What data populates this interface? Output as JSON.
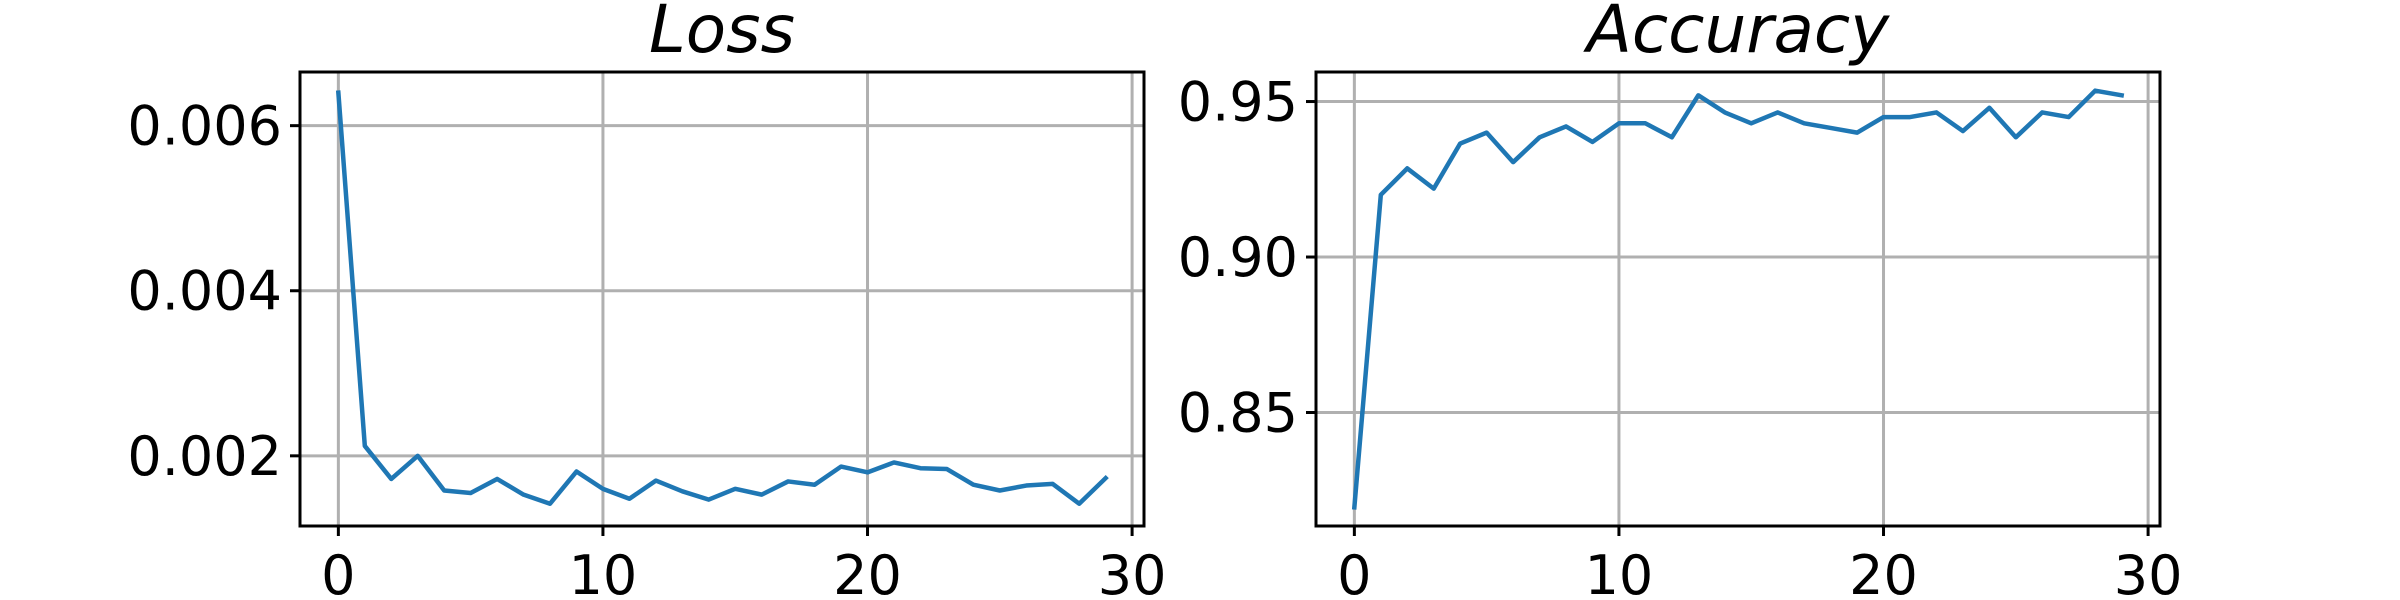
{
  "chart_data": [
    {
      "type": "line",
      "title": "Loss",
      "xlabel": "",
      "ylabel": "",
      "xlim": [
        -1.45,
        30.45
      ],
      "ylim": [
        0.00115,
        0.00665
      ],
      "xticks": [
        0,
        10,
        20,
        30
      ],
      "xtick_labels": [
        "0",
        "10",
        "20",
        "30"
      ],
      "yticks": [
        0.002,
        0.004,
        0.006
      ],
      "ytick_labels": [
        "0.002",
        "0.004",
        "0.006"
      ],
      "grid": true,
      "color": "#1f77b4",
      "series": [
        {
          "x": [
            0,
            1,
            2,
            3,
            4,
            5,
            6,
            7,
            8,
            9,
            10,
            11,
            12,
            13,
            14,
            15,
            16,
            17,
            18,
            19,
            20,
            21,
            22,
            23,
            24,
            25,
            26,
            27,
            28,
            29
          ],
          "values": [
            0.0064,
            0.00212,
            0.00172,
            0.002,
            0.00158,
            0.00155,
            0.00172,
            0.00153,
            0.00142,
            0.00181,
            0.0016,
            0.00148,
            0.0017,
            0.00157,
            0.00147,
            0.0016,
            0.00153,
            0.00169,
            0.00165,
            0.00187,
            0.0018,
            0.00192,
            0.00185,
            0.00184,
            0.00165,
            0.00158,
            0.00164,
            0.00166,
            0.00142,
            0.00173
          ]
        }
      ]
    },
    {
      "type": "line",
      "title": "Accuracy",
      "xlabel": "",
      "ylabel": "",
      "xlim": [
        -1.45,
        30.45
      ],
      "ylim": [
        0.8135,
        0.9595
      ],
      "xticks": [
        0,
        10,
        20,
        30
      ],
      "xtick_labels": [
        "0",
        "10",
        "20",
        "30"
      ],
      "yticks": [
        0.85,
        0.9,
        0.95
      ],
      "ytick_labels": [
        "0.85",
        "0.90",
        "0.95"
      ],
      "grid": true,
      "color": "#1f77b4",
      "series": [
        {
          "x": [
            0,
            1,
            2,
            3,
            4,
            5,
            6,
            7,
            8,
            9,
            10,
            11,
            12,
            13,
            14,
            15,
            16,
            17,
            18,
            19,
            20,
            21,
            22,
            23,
            24,
            25,
            26,
            27,
            28,
            29
          ],
          "values": [
            0.8195,
            0.92,
            0.9285,
            0.922,
            0.9365,
            0.94,
            0.9305,
            0.9385,
            0.942,
            0.937,
            0.943,
            0.943,
            0.9385,
            0.952,
            0.9465,
            0.943,
            0.9465,
            0.943,
            0.9415,
            0.94,
            0.945,
            0.945,
            0.9465,
            0.9405,
            0.948,
            0.9385,
            0.9465,
            0.945,
            0.9535,
            0.952
          ]
        }
      ]
    }
  ]
}
